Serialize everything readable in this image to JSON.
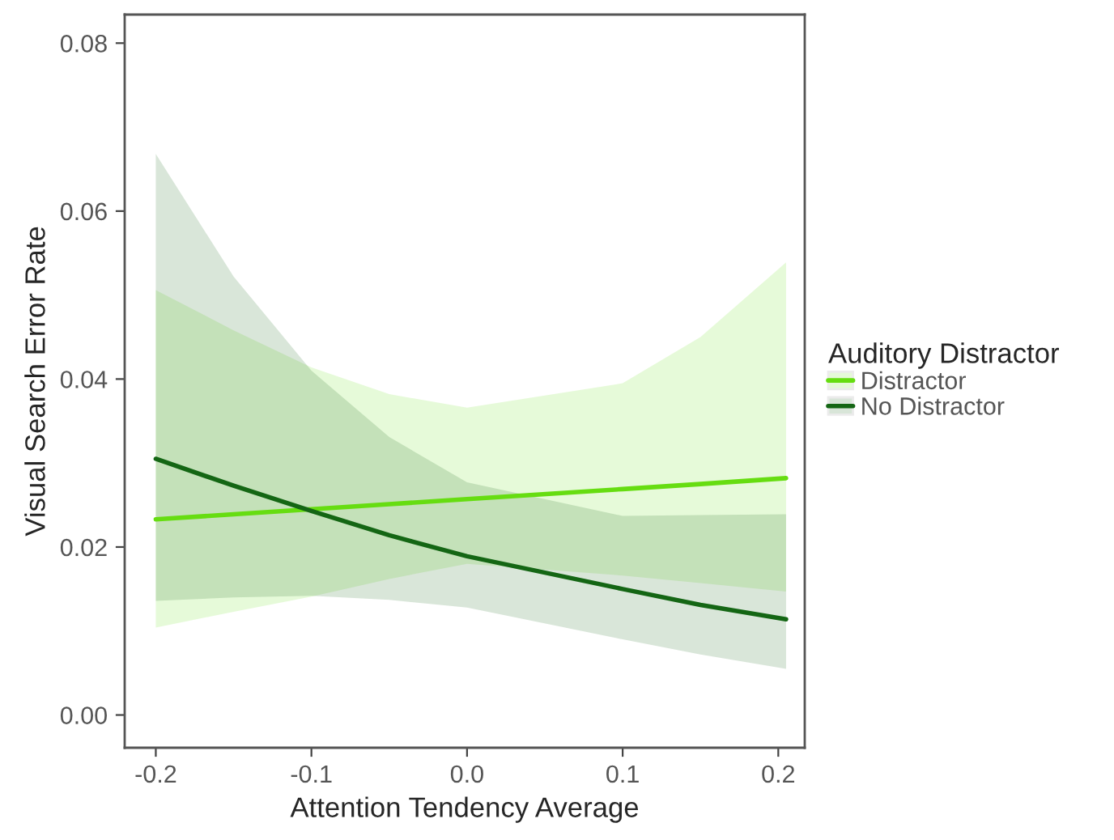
{
  "chart_data": {
    "type": "line",
    "xlabel": "Attention Tendency Average",
    "ylabel": "Visual Search Error Rate",
    "legend_title": "Auditory Distractor",
    "x": [
      -0.2,
      -0.15,
      -0.1,
      -0.05,
      0,
      0.1,
      0.15,
      0.205
    ],
    "series": [
      {
        "name": "Distractor",
        "color": "#66dd11",
        "values": [
          0.0233,
          0.0239,
          0.0245,
          0.0251,
          0.0257,
          0.0269,
          0.0275,
          0.0282
        ],
        "lower": [
          0.0104,
          0.0123,
          0.0141,
          0.0162,
          0.018,
          0.0166,
          0.0157,
          0.0147
        ],
        "upper": [
          0.0506,
          0.0458,
          0.0414,
          0.0382,
          0.0366,
          0.0395,
          0.045,
          0.0539
        ]
      },
      {
        "name": "No Distractor",
        "color": "#146614",
        "values": [
          0.0305,
          0.0273,
          0.0243,
          0.0214,
          0.0189,
          0.015,
          0.0131,
          0.0114
        ],
        "lower": [
          0.0136,
          0.014,
          0.0142,
          0.0137,
          0.0128,
          0.009,
          0.0072,
          0.0055
        ],
        "upper": [
          0.0668,
          0.0522,
          0.041,
          0.0331,
          0.0277,
          0.0237,
          0.0238,
          0.0239
        ]
      }
    ],
    "xlim": [
      -0.22,
      0.217
    ],
    "ylim": [
      -0.0039,
      0.0834
    ],
    "xticks": [
      {
        "value": -0.2,
        "label": "-0.2"
      },
      {
        "value": -0.1,
        "label": "-0.1"
      },
      {
        "value": 0,
        "label": "0.0"
      },
      {
        "value": 0.1,
        "label": "0.1"
      },
      {
        "value": 0.2,
        "label": "0.2"
      }
    ],
    "yticks": [
      {
        "value": 0,
        "label": "0.00"
      },
      {
        "value": 0.02,
        "label": "0.02"
      },
      {
        "value": 0.04,
        "label": "0.04"
      },
      {
        "value": 0.06,
        "label": "0.06"
      },
      {
        "value": 0.08,
        "label": "0.08"
      }
    ],
    "grid": false,
    "legend": "right",
    "marker": "none",
    "line_style": "solid"
  }
}
